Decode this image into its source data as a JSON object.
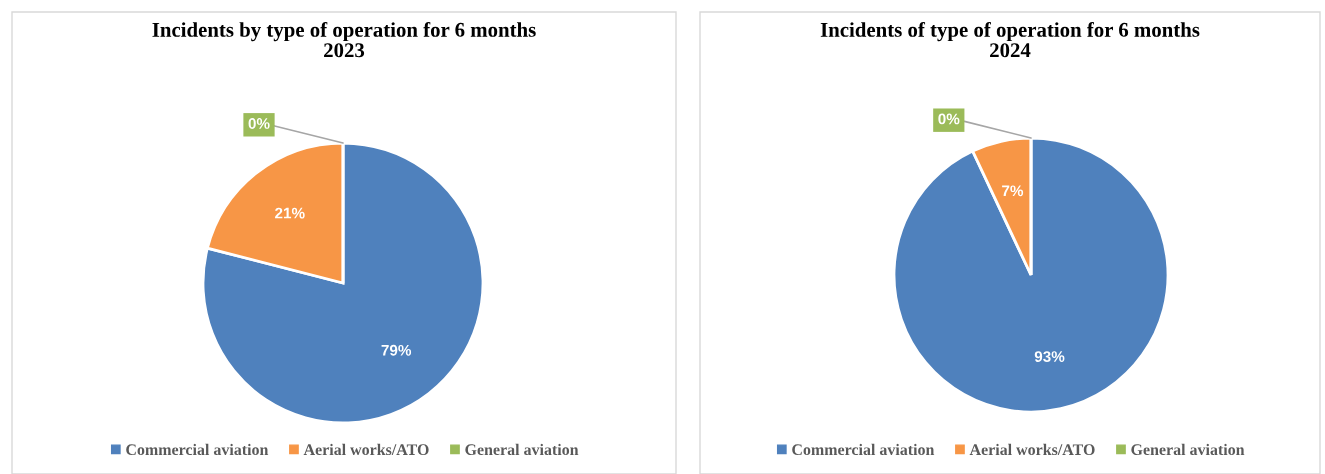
{
  "chart_data": [
    {
      "type": "pie",
      "title": "Incidents by type of operation for 6 months\n2023",
      "categories": [
        "Commercial aviation",
        "Aerial works/ATO",
        "General aviation"
      ],
      "values": [
        79,
        21,
        0
      ],
      "colors": [
        "#4f81bd",
        "#f79646",
        "#9bbb59"
      ],
      "value_labels": [
        "79%",
        "21%",
        "0%"
      ],
      "legend": "bottom"
    },
    {
      "type": "pie",
      "title": "Incidents of type of operation for 6 months\n2024",
      "categories": [
        "Commercial aviation",
        "Aerial works/ATO",
        "General aviation"
      ],
      "values": [
        93,
        7,
        0
      ],
      "colors": [
        "#4f81bd",
        "#f79646",
        "#9bbb59"
      ],
      "value_labels": [
        "93%",
        "7%",
        "0%"
      ],
      "legend": "bottom"
    }
  ]
}
